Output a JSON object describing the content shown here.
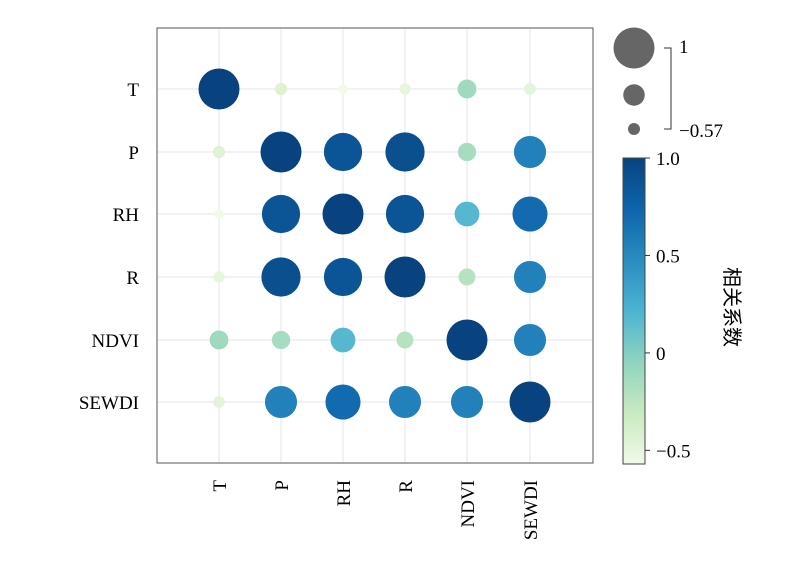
{
  "chart_data": {
    "type": "bubble-correlation-matrix",
    "rows": [
      "T",
      "P",
      "RH",
      "R",
      "NDVI",
      "SEWDI"
    ],
    "columns": [
      "T",
      "P",
      "RH",
      "R",
      "NDVI",
      "SEWDI"
    ],
    "values": [
      [
        1.0,
        -0.45,
        -0.57,
        -0.5,
        -0.12,
        -0.48
      ],
      [
        -0.45,
        1.0,
        0.86,
        0.91,
        -0.15,
        0.55
      ],
      [
        -0.57,
        0.86,
        1.0,
        0.86,
        0.18,
        0.7
      ],
      [
        -0.5,
        0.91,
        0.86,
        1.0,
        -0.22,
        0.55
      ],
      [
        -0.12,
        -0.15,
        0.18,
        -0.22,
        1.0,
        0.55
      ],
      [
        -0.48,
        0.55,
        0.7,
        0.55,
        0.55,
        1.0
      ]
    ],
    "size_legend": {
      "max_label": "1",
      "min_label": "−0.57"
    },
    "colorbar": {
      "title": "相关系数",
      "range": [
        -0.57,
        1.0
      ],
      "ticks": [
        {
          "value": 1.0,
          "label": "1.0"
        },
        {
          "value": 0.5,
          "label": "0.5"
        },
        {
          "value": 0,
          "label": "0"
        },
        {
          "value": -0.5,
          "label": "−0.5"
        }
      ]
    },
    "colors": {
      "stops": [
        "#f1f9e8",
        "#c8eac1",
        "#8fd4bf",
        "#4db3d3",
        "#2a8cc0",
        "#0d65ab",
        "#08437f"
      ],
      "bubble_size_legend": "#666666",
      "grid": "#e6e6e6",
      "axes": "#555555"
    },
    "grid": true
  }
}
